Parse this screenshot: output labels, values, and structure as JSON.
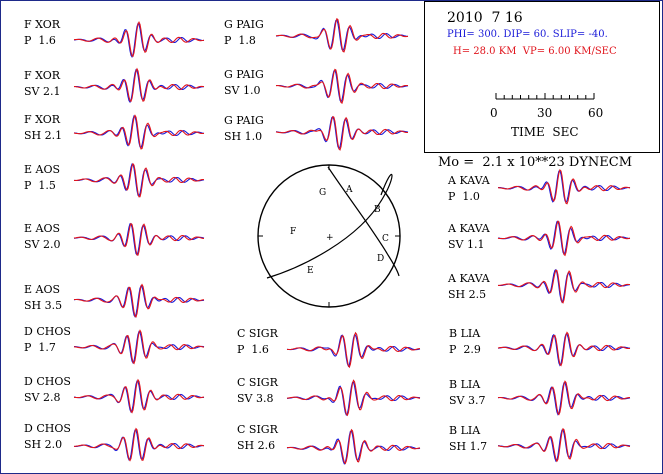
{
  "event": {
    "date": "2010  7 16",
    "mechanism": "PHI= 300. DIP= 60. SLIP= -40.",
    "depth_velocity": "H= 28.0 KM  VP= 6.00 KM/SEC",
    "moment": "Mo =  2.1 x 10**23 DYNECM"
  },
  "time_scale": {
    "ticks": [
      "0",
      "30",
      "60"
    ],
    "title": "TIME  SEC"
  },
  "colors": {
    "observed": "#1a1ad8",
    "synthetic": "#e0141c",
    "frame": "#1e2a8a"
  },
  "traces": [
    {
      "station": "F XOR",
      "comp": "P  1.6"
    },
    {
      "station": "F XOR",
      "comp": "SV 2.1"
    },
    {
      "station": "F XOR",
      "comp": "SH 2.1"
    },
    {
      "station": "E AOS",
      "comp": "P  1.5"
    },
    {
      "station": "E AOS",
      "comp": "SV 2.0"
    },
    {
      "station": "E AOS",
      "comp": "SH 3.5"
    },
    {
      "station": "D CHOS",
      "comp": "P  1.7"
    },
    {
      "station": "D CHOS",
      "comp": "SV 2.8"
    },
    {
      "station": "D CHOS",
      "comp": "SH 2.0"
    },
    {
      "station": "G PAIG",
      "comp": "P  1.8"
    },
    {
      "station": "G PAIG",
      "comp": "SV 1.0"
    },
    {
      "station": "G PAIG",
      "comp": "SH 1.0"
    },
    {
      "station": "C SIGR",
      "comp": "P  1.6"
    },
    {
      "station": "C SIGR",
      "comp": "SV 3.8"
    },
    {
      "station": "C SIGR",
      "comp": "SH 2.6"
    },
    {
      "station": "A KAVA",
      "comp": "P  1.0"
    },
    {
      "station": "A KAVA",
      "comp": "SV 1.1"
    },
    {
      "station": "A KAVA",
      "comp": "SH 2.5"
    },
    {
      "station": "B LIA",
      "comp": "P  2.9"
    },
    {
      "station": "B LIA",
      "comp": "SV 3.7"
    },
    {
      "station": "B LIA",
      "comp": "SH 1.7"
    }
  ],
  "beachball": {
    "stations": [
      "G",
      "A",
      "B",
      "F",
      "C",
      "E",
      "D"
    ],
    "center": "+"
  }
}
